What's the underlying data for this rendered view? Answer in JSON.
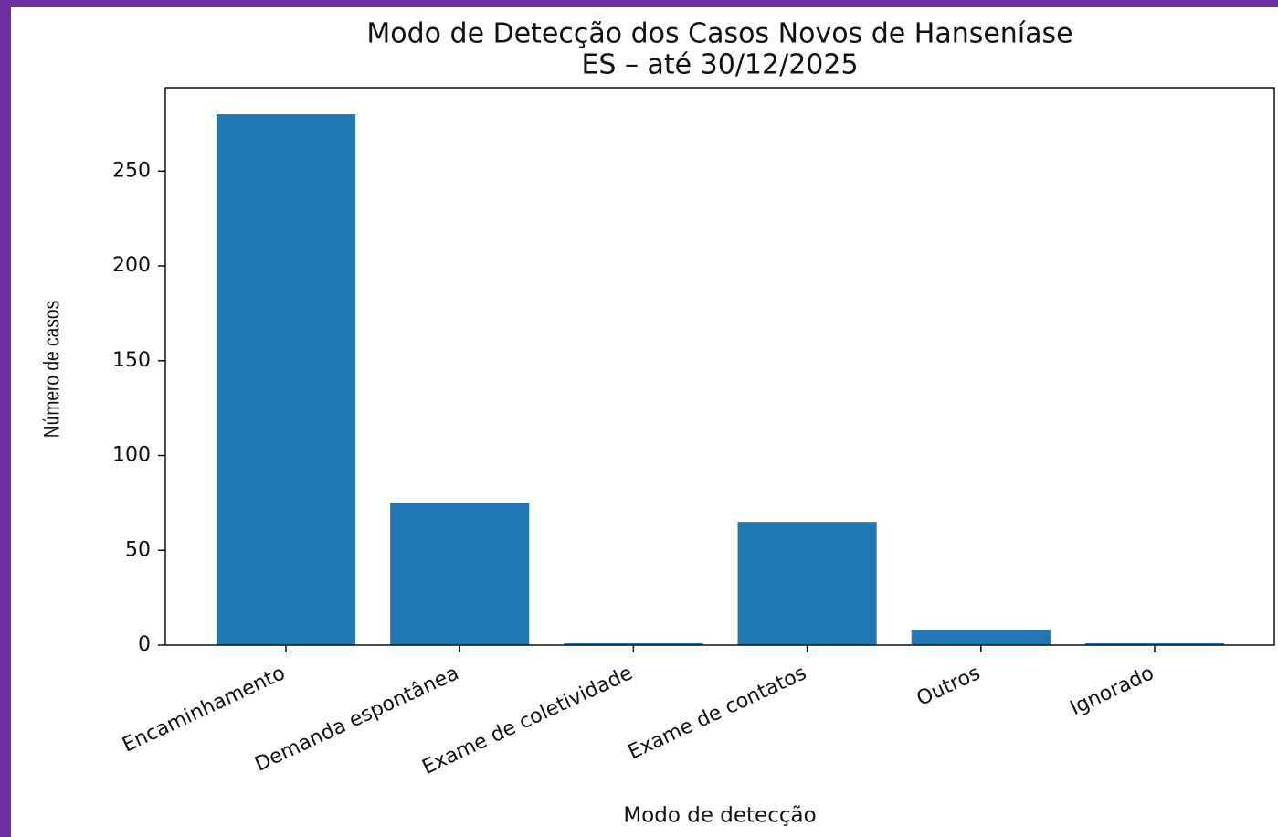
{
  "chart_data": {
    "type": "bar",
    "title": "Modo de Detecção dos Casos Novos de Hanseníase",
    "subtitle": "ES – até 30/12/2025",
    "x_label": "Modo de detecção",
    "y_label": "Número de casos",
    "categories": [
      "Encaminhamento",
      "Demanda espontânea",
      "Exame de coletividade",
      "Exame de contatos",
      "Outros",
      "Ignorado"
    ],
    "values": [
      280,
      75,
      1,
      65,
      8,
      1
    ],
    "color": "#1f77b4",
    "ylim": [
      0,
      294
    ],
    "yticks": [
      0,
      50,
      100,
      150,
      200,
      250
    ],
    "grid": false
  }
}
